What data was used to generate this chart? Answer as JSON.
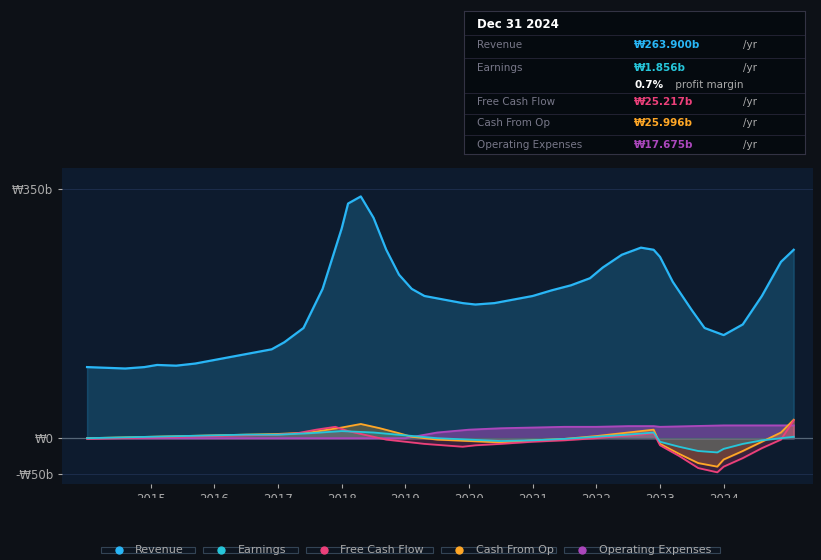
{
  "background_color": "#0d1117",
  "plot_bg_color": "#0d1b2e",
  "grid_color": "#1e3050",
  "text_color": "#aaaaaa",
  "ylim": [
    -65,
    380
  ],
  "xlim_start": 2013.6,
  "xlim_end": 2025.4,
  "xtick_years": [
    2015,
    2016,
    2017,
    2018,
    2019,
    2020,
    2021,
    2022,
    2023,
    2024
  ],
  "ytick_labels": [
    "-₩50b",
    "₩0",
    "₩350b"
  ],
  "ytick_vals": [
    -50,
    0,
    350
  ],
  "colors": {
    "revenue": "#29b6f6",
    "earnings": "#26c6da",
    "free_cash_flow": "#ec407a",
    "cash_from_op": "#ffa726",
    "operating_expenses": "#ab47bc"
  },
  "tooltip": {
    "date": "Dec 31 2024",
    "revenue_val": "₩263.900b",
    "earnings_val": "₩1.856b",
    "profit_margin": "0.7%",
    "fcf_val": "₩25.217b",
    "cfop_val": "₩25.996b",
    "opex_val": "₩17.675b"
  },
  "revenue_x": [
    2014.0,
    2014.3,
    2014.6,
    2014.9,
    2015.1,
    2015.4,
    2015.7,
    2016.0,
    2016.3,
    2016.6,
    2016.9,
    2017.1,
    2017.4,
    2017.7,
    2018.0,
    2018.1,
    2018.3,
    2018.5,
    2018.7,
    2018.9,
    2019.1,
    2019.3,
    2019.6,
    2019.9,
    2020.1,
    2020.4,
    2020.7,
    2021.0,
    2021.3,
    2021.6,
    2021.9,
    2022.1,
    2022.4,
    2022.7,
    2022.9,
    2023.0,
    2023.2,
    2023.5,
    2023.7,
    2024.0,
    2024.3,
    2024.6,
    2024.9,
    2025.1
  ],
  "revenue_y": [
    100,
    99,
    98,
    100,
    103,
    102,
    105,
    110,
    115,
    120,
    125,
    135,
    155,
    210,
    295,
    330,
    340,
    310,
    265,
    230,
    210,
    200,
    195,
    190,
    188,
    190,
    195,
    200,
    208,
    215,
    225,
    240,
    258,
    268,
    265,
    255,
    220,
    180,
    155,
    145,
    160,
    200,
    248,
    265
  ],
  "earnings_x": [
    2014.0,
    2014.5,
    2015.0,
    2015.5,
    2016.0,
    2016.5,
    2017.0,
    2017.5,
    2018.0,
    2018.5,
    2019.0,
    2019.5,
    2020.0,
    2020.5,
    2021.0,
    2021.5,
    2022.0,
    2022.5,
    2022.9,
    2023.0,
    2023.3,
    2023.6,
    2023.9,
    2024.0,
    2024.3,
    2024.6,
    2024.9,
    2025.1
  ],
  "earnings_y": [
    0,
    1,
    2,
    3,
    4,
    5,
    5,
    7,
    10,
    8,
    4,
    0,
    -2,
    -4,
    -3,
    -1,
    2,
    5,
    8,
    -5,
    -12,
    -18,
    -20,
    -15,
    -8,
    -3,
    0,
    2
  ],
  "fcf_x": [
    2014.0,
    2014.5,
    2015.0,
    2015.5,
    2016.0,
    2016.5,
    2017.0,
    2017.3,
    2017.6,
    2017.9,
    2018.1,
    2018.4,
    2018.7,
    2019.0,
    2019.3,
    2019.6,
    2019.9,
    2020.1,
    2020.5,
    2021.0,
    2021.5,
    2022.0,
    2022.4,
    2022.7,
    2022.9,
    2023.0,
    2023.3,
    2023.6,
    2023.9,
    2024.0,
    2024.3,
    2024.6,
    2024.9,
    2025.1
  ],
  "fcf_y": [
    -1,
    0,
    1,
    2,
    3,
    4,
    5,
    7,
    12,
    16,
    10,
    4,
    -2,
    -5,
    -8,
    -10,
    -12,
    -10,
    -8,
    -5,
    -3,
    0,
    3,
    5,
    7,
    -10,
    -25,
    -42,
    -48,
    -40,
    -28,
    -14,
    -2,
    25
  ],
  "cfop_x": [
    2014.0,
    2014.5,
    2015.0,
    2015.5,
    2016.0,
    2016.5,
    2017.0,
    2017.5,
    2018.0,
    2018.3,
    2018.6,
    2018.9,
    2019.1,
    2019.5,
    2020.0,
    2020.5,
    2021.0,
    2021.5,
    2022.0,
    2022.4,
    2022.7,
    2022.9,
    2023.0,
    2023.3,
    2023.6,
    2023.9,
    2024.0,
    2024.3,
    2024.6,
    2024.9,
    2025.1
  ],
  "cfop_y": [
    0,
    1,
    2,
    3,
    4,
    5,
    6,
    8,
    15,
    20,
    14,
    7,
    2,
    -2,
    -4,
    -6,
    -3,
    -1,
    3,
    7,
    10,
    12,
    -8,
    -22,
    -35,
    -40,
    -30,
    -18,
    -5,
    8,
    26
  ],
  "opex_x": [
    2014.0,
    2015.0,
    2016.0,
    2017.0,
    2018.0,
    2019.0,
    2019.5,
    2020.0,
    2020.5,
    2021.0,
    2021.5,
    2022.0,
    2022.5,
    2022.9,
    2023.0,
    2023.5,
    2024.0,
    2024.5,
    2024.9,
    2025.1
  ],
  "opex_y": [
    0,
    0,
    0,
    0,
    0,
    0,
    8,
    12,
    14,
    15,
    16,
    16,
    17,
    17,
    16,
    17,
    18,
    18,
    18,
    18
  ]
}
